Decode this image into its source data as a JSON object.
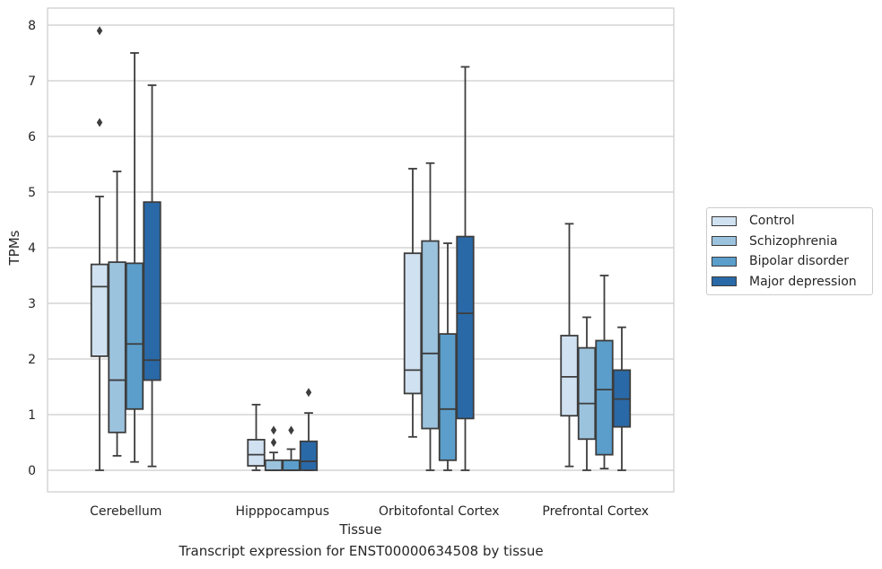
{
  "caption": "Transcript expression for ENST00000634508 by tissue",
  "chart_data": {
    "type": "box",
    "xlabel": "Tissue",
    "ylabel": "TPMs",
    "ylim": [
      -0.4,
      8.3
    ],
    "yticks": [
      "0",
      "1",
      "2",
      "3",
      "4",
      "5",
      "6",
      "7",
      "8"
    ],
    "grid": "horizontal",
    "legend_position": "right",
    "categories": [
      "Cerebellum",
      "Hipppocampus",
      "Orbitofontal Cortex",
      "Prefrontal Cortex"
    ],
    "series": [
      {
        "name": "Control",
        "color": "#d0e1f1",
        "boxes": [
          {
            "whisker_low": 0.0,
            "q1": 2.05,
            "median": 3.3,
            "q3": 3.7,
            "whisker_high": 4.92,
            "outliers": [
              6.25,
              7.9
            ]
          },
          {
            "whisker_low": 0.0,
            "q1": 0.08,
            "median": 0.28,
            "q3": 0.55,
            "whisker_high": 1.18,
            "outliers": []
          },
          {
            "whisker_low": 0.6,
            "q1": 1.38,
            "median": 1.8,
            "q3": 3.9,
            "whisker_high": 5.42,
            "outliers": []
          },
          {
            "whisker_low": 0.07,
            "q1": 0.98,
            "median": 1.68,
            "q3": 2.42,
            "whisker_high": 4.43,
            "outliers": []
          }
        ]
      },
      {
        "name": "Schizophrenia",
        "color": "#9cc3de",
        "boxes": [
          {
            "whisker_low": 0.26,
            "q1": 0.68,
            "median": 1.62,
            "q3": 3.74,
            "whisker_high": 5.37,
            "outliers": []
          },
          {
            "whisker_low": 0.0,
            "q1": 0.0,
            "median": 0.0,
            "q3": 0.18,
            "whisker_high": 0.32,
            "outliers": [
              0.5,
              0.72
            ]
          },
          {
            "whisker_low": 0.0,
            "q1": 0.75,
            "median": 2.1,
            "q3": 4.12,
            "whisker_high": 5.52,
            "outliers": []
          },
          {
            "whisker_low": 0.0,
            "q1": 0.56,
            "median": 1.2,
            "q3": 2.2,
            "whisker_high": 2.75,
            "outliers": []
          }
        ]
      },
      {
        "name": "Bipolar disorder",
        "color": "#5b9ecb",
        "boxes": [
          {
            "whisker_low": 0.15,
            "q1": 1.1,
            "median": 2.27,
            "q3": 3.72,
            "whisker_high": 7.5,
            "outliers": []
          },
          {
            "whisker_low": 0.0,
            "q1": 0.0,
            "median": 0.0,
            "q3": 0.18,
            "whisker_high": 0.38,
            "outliers": [
              0.72
            ]
          },
          {
            "whisker_low": 0.0,
            "q1": 0.18,
            "median": 1.1,
            "q3": 2.45,
            "whisker_high": 4.08,
            "outliers": []
          },
          {
            "whisker_low": 0.03,
            "q1": 0.28,
            "median": 1.45,
            "q3": 2.33,
            "whisker_high": 3.5,
            "outliers": []
          }
        ]
      },
      {
        "name": "Major depression",
        "color": "#2a69a7",
        "boxes": [
          {
            "whisker_low": 0.07,
            "q1": 1.62,
            "median": 1.98,
            "q3": 4.82,
            "whisker_high": 6.92,
            "outliers": []
          },
          {
            "whisker_low": 0.0,
            "q1": 0.0,
            "median": 0.16,
            "q3": 0.52,
            "whisker_high": 1.03,
            "outliers": [
              1.4
            ]
          },
          {
            "whisker_low": 0.0,
            "q1": 0.93,
            "median": 2.82,
            "q3": 4.2,
            "whisker_high": 7.25,
            "outliers": []
          },
          {
            "whisker_low": 0.0,
            "q1": 0.78,
            "median": 1.28,
            "q3": 1.8,
            "whisker_high": 2.57,
            "outliers": []
          }
        ]
      }
    ]
  }
}
